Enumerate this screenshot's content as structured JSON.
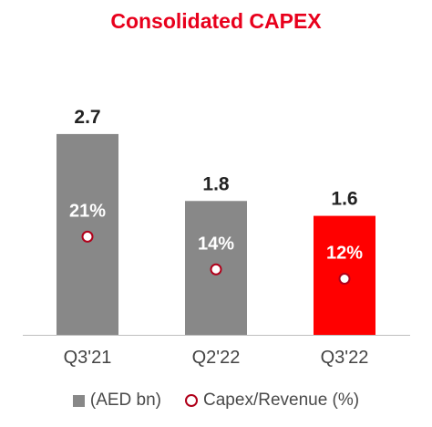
{
  "colors": {
    "title": "#e8001c",
    "bar_default": "#888888",
    "bar_highlight": "#ff0000",
    "marker_stroke": "#b0001a",
    "value_label": "#222222",
    "axis_label": "#444444",
    "axis_line": "#bfbfbf"
  },
  "chart_data": {
    "type": "bar",
    "title": "Consolidated CAPEX",
    "categories": [
      "Q3'21",
      "Q2'22",
      "Q3'22"
    ],
    "series": [
      {
        "name": "(AED bn)",
        "values": [
          2.7,
          1.8,
          1.6
        ],
        "value_labels": [
          "2.7",
          "1.8",
          "1.6"
        ],
        "colors": [
          "#888888",
          "#888888",
          "#ff0000"
        ]
      },
      {
        "name": "Capex/Revenue (%)",
        "type": "marker",
        "values": [
          21,
          14,
          12
        ],
        "value_labels": [
          "21%",
          "14%",
          "12%"
        ]
      }
    ],
    "ylim": [
      0,
      3.3
    ],
    "secondary_ylim": [
      0,
      40
    ],
    "grid": false,
    "legend": "bottom"
  }
}
